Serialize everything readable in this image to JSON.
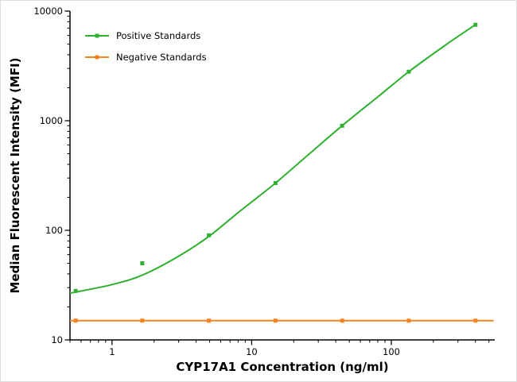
{
  "figure": {
    "background": "#ffffff",
    "border_color": "#dcdcdc"
  },
  "chart_data": {
    "type": "line",
    "title": "",
    "xlabel": "CYP17A1 Concentration (ng/ml)",
    "ylabel": "Median Fluorescent Intensity (MFI)",
    "x_scale": "log",
    "y_scale": "log",
    "xlim": [
      0.5,
      550
    ],
    "ylim": [
      10,
      10000
    ],
    "x_major_ticks": [
      1,
      10,
      100
    ],
    "y_major_ticks": [
      10,
      100,
      1000,
      10000
    ],
    "grid": false,
    "legend_position": "top-left",
    "axis_color": "#000000",
    "series": [
      {
        "name": "Positive Standards",
        "color": "#2eb12e",
        "marker": "square",
        "x": [
          0.549,
          1.646,
          4.938,
          14.81,
          44.44,
          133.3,
          400
        ],
        "y": [
          28,
          50,
          90,
          270,
          900,
          2800,
          7500
        ],
        "fit_x": [
          0.5,
          0.549,
          1.0,
          1.646,
          3,
          4.938,
          8,
          14.81,
          25,
          44.44,
          80,
          133.3,
          250,
          400
        ],
        "fit_y": [
          27,
          27.3,
          32,
          39,
          58,
          88,
          145,
          270,
          480,
          900,
          1650,
          2800,
          5000,
          7500
        ]
      },
      {
        "name": "Negative Standards",
        "color": "#f58220",
        "marker": "square",
        "x": [
          0.549,
          1.646,
          4.938,
          14.81,
          44.44,
          133.3,
          400
        ],
        "y": [
          15,
          15,
          15,
          15,
          15,
          15,
          15
        ],
        "fit_x": [
          0.5,
          540
        ],
        "fit_y": [
          15,
          15
        ]
      }
    ]
  }
}
